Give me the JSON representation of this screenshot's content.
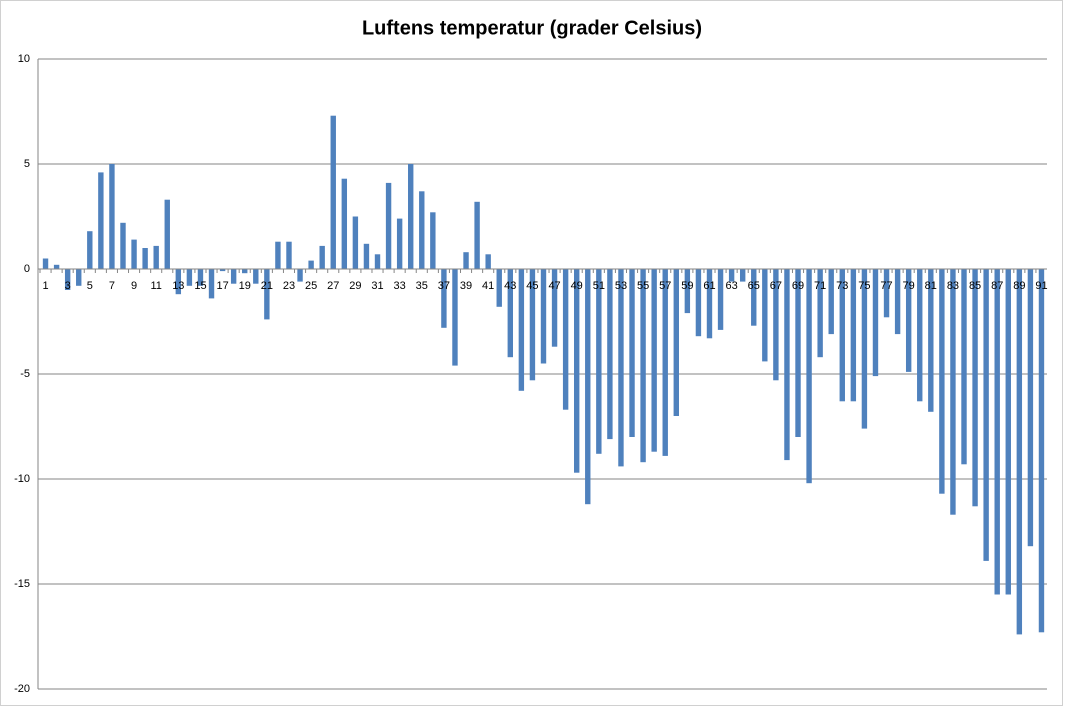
{
  "chart_data": {
    "type": "bar",
    "title": "Luftens temperatur (grader Celsius)",
    "categories": [
      "1",
      null,
      "3",
      null,
      "5",
      null,
      "7",
      null,
      "9",
      null,
      "11",
      null,
      "13",
      null,
      "15",
      null,
      "17",
      null,
      "19",
      null,
      "21",
      null,
      "23",
      null,
      "25",
      null,
      "27",
      null,
      "29",
      null,
      "31",
      null,
      "33",
      null,
      "35",
      null,
      "37",
      null,
      "39",
      null,
      "41",
      null,
      "43",
      null,
      "45",
      null,
      "47",
      null,
      "49",
      null,
      "51",
      null,
      "53",
      null,
      "55",
      null,
      "57",
      null,
      "59",
      null,
      "61",
      null,
      "63",
      null,
      "65",
      null,
      "67",
      null,
      "69",
      null,
      "71",
      null,
      "73",
      null,
      "75",
      null,
      "77",
      null,
      "79",
      null,
      "81",
      null,
      "83",
      null,
      "85",
      null,
      "87",
      null,
      "89",
      null,
      "91"
    ],
    "values": [
      0.5,
      0.2,
      -1.0,
      -0.8,
      1.8,
      4.6,
      5.0,
      2.2,
      1.4,
      1.0,
      1.1,
      3.3,
      -1.2,
      -0.8,
      -0.8,
      -1.4,
      -0.1,
      -0.7,
      -0.2,
      -0.7,
      -2.4,
      1.3,
      1.3,
      -0.6,
      0.4,
      1.1,
      7.3,
      4.3,
      2.5,
      1.2,
      0.7,
      4.1,
      2.4,
      5.0,
      3.7,
      2.7,
      -2.8,
      -4.6,
      0.8,
      3.2,
      0.7,
      -1.8,
      -4.2,
      -5.8,
      -5.3,
      -4.5,
      -3.7,
      -6.7,
      -9.7,
      -11.2,
      -8.8,
      -8.1,
      -9.4,
      -8.0,
      -9.2,
      -8.7,
      -8.9,
      -7.0,
      -2.1,
      -3.2,
      -3.3,
      -2.9,
      -0.6,
      -0.6,
      -2.7,
      -4.4,
      -5.3,
      -9.1,
      -8.0,
      -10.2,
      -4.2,
      -3.1,
      -6.3,
      -6.3,
      -7.6,
      -5.1,
      -2.3,
      -3.1,
      -4.9,
      -6.3,
      -6.8,
      -10.7,
      -11.7,
      -9.3,
      -11.3,
      -13.9,
      -15.5,
      -15.5,
      -17.4,
      -13.2,
      -17.3
    ],
    "color": "#4f81bd",
    "ylim": [
      -20,
      10
    ],
    "yticks": [
      -20,
      -15,
      -10,
      -5,
      0,
      5,
      10
    ],
    "grid": true
  }
}
